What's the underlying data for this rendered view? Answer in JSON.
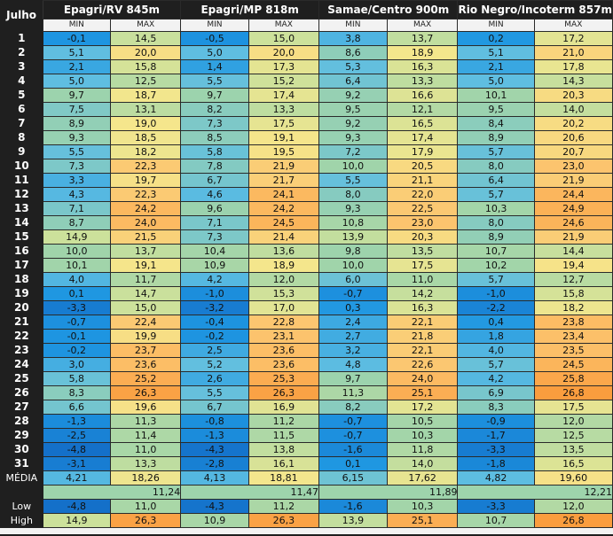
{
  "corner_label": "Julho",
  "stations": [
    {
      "name": "Epagri/RV 845m"
    },
    {
      "name": "Epagri/MP 818m"
    },
    {
      "name": "Samae/Centro 900m"
    },
    {
      "name": "Rio Negro/Incoterm 857m"
    }
  ],
  "sub_labels": {
    "min": "MIN",
    "max": "MAX"
  },
  "rows": [
    {
      "day": "1",
      "v": [
        "-0,1",
        "14,5",
        "-0,5",
        "15,0",
        "3,8",
        "13,7",
        "0,2",
        "17,2"
      ]
    },
    {
      "day": "2",
      "v": [
        "5,1",
        "20,0",
        "5,0",
        "20,0",
        "8,6",
        "18,9",
        "5,1",
        "21,0"
      ]
    },
    {
      "day": "3",
      "v": [
        "2,1",
        "15,8",
        "1,4",
        "17,3",
        "5,3",
        "16,3",
        "2,1",
        "17,8"
      ]
    },
    {
      "day": "4",
      "v": [
        "5,0",
        "12,5",
        "5,5",
        "15,2",
        "6,4",
        "13,3",
        "5,0",
        "14,3"
      ]
    },
    {
      "day": "5",
      "v": [
        "9,7",
        "18,7",
        "9,7",
        "17,4",
        "9,2",
        "16,6",
        "10,1",
        "20,3"
      ]
    },
    {
      "day": "6",
      "v": [
        "7,5",
        "13,1",
        "8,2",
        "13,3",
        "9,5",
        "12,1",
        "9,5",
        "14,0"
      ]
    },
    {
      "day": "7",
      "v": [
        "8,9",
        "19,0",
        "7,3",
        "17,5",
        "9,2",
        "16,5",
        "8,4",
        "20,2"
      ]
    },
    {
      "day": "8",
      "v": [
        "9,3",
        "18,5",
        "8,5",
        "19,1",
        "9,3",
        "17,4",
        "8,9",
        "20,6"
      ]
    },
    {
      "day": "9",
      "v": [
        "5,5",
        "18,2",
        "5,8",
        "19,5",
        "7,2",
        "17,9",
        "5,7",
        "20,7"
      ]
    },
    {
      "day": "10",
      "v": [
        "7,3",
        "22,3",
        "7,8",
        "21,9",
        "10,0",
        "20,5",
        "8,0",
        "23,0"
      ]
    },
    {
      "day": "11",
      "v": [
        "3,3",
        "19,7",
        "6,7",
        "21,7",
        "5,5",
        "21,1",
        "6,4",
        "21,9"
      ]
    },
    {
      "day": "12",
      "v": [
        "4,3",
        "22,3",
        "4,6",
        "24,1",
        "8,0",
        "22,0",
        "5,7",
        "24,4"
      ]
    },
    {
      "day": "13",
      "v": [
        "7,1",
        "24,2",
        "9,6",
        "24,2",
        "9,3",
        "22,5",
        "10,3",
        "24,9"
      ]
    },
    {
      "day": "14",
      "v": [
        "8,7",
        "24,0",
        "7,1",
        "24,5",
        "10,8",
        "23,0",
        "8,0",
        "24,6"
      ]
    },
    {
      "day": "15",
      "v": [
        "14,9",
        "21,5",
        "7,3",
        "21,4",
        "13,9",
        "20,3",
        "8,9",
        "21,9"
      ]
    },
    {
      "day": "16",
      "v": [
        "10,0",
        "13,7",
        "10,4",
        "13,6",
        "9,8",
        "13,5",
        "10,7",
        "14,4"
      ]
    },
    {
      "day": "17",
      "v": [
        "10,1",
        "19,1",
        "10,9",
        "18,9",
        "10,0",
        "17,5",
        "10,2",
        "19,4"
      ]
    },
    {
      "day": "18",
      "v": [
        "4,0",
        "11,7",
        "4,2",
        "12,0",
        "6,0",
        "11,0",
        "5,7",
        "12,7"
      ]
    },
    {
      "day": "19",
      "v": [
        "0,1",
        "14,7",
        "-1,0",
        "15,3",
        "-0,7",
        "14,2",
        "-1,0",
        "15,8"
      ]
    },
    {
      "day": "20",
      "v": [
        "-3,3",
        "15,0",
        "-3,2",
        "17,0",
        "0,3",
        "16,3",
        "-2,2",
        "18,2"
      ]
    },
    {
      "day": "21",
      "v": [
        "-0,7",
        "22,4",
        "-0,4",
        "22,8",
        "2,4",
        "22,1",
        "0,4",
        "23,8"
      ]
    },
    {
      "day": "22",
      "v": [
        "-0,1",
        "19,9",
        "-0,2",
        "23,1",
        "2,7",
        "21,8",
        "1,8",
        "23,4"
      ]
    },
    {
      "day": "23",
      "v": [
        "-0,2",
        "23,7",
        "2,5",
        "23,6",
        "3,2",
        "22,1",
        "4,0",
        "23,5"
      ]
    },
    {
      "day": "24",
      "v": [
        "3,0",
        "23,6",
        "5,2",
        "23,6",
        "4,8",
        "22,6",
        "5,7",
        "24,5"
      ]
    },
    {
      "day": "25",
      "v": [
        "5,8",
        "25,2",
        "2,6",
        "25,3",
        "9,7",
        "24,0",
        "4,2",
        "25,8"
      ]
    },
    {
      "day": "26",
      "v": [
        "8,3",
        "26,3",
        "5,5",
        "26,3",
        "11,3",
        "25,1",
        "6,9",
        "26,8"
      ]
    },
    {
      "day": "27",
      "v": [
        "6,6",
        "19,6",
        "6,7",
        "16,9",
        "8,2",
        "17,2",
        "8,3",
        "17,5"
      ]
    },
    {
      "day": "28",
      "v": [
        "-1,3",
        "11,3",
        "-0,8",
        "11,2",
        "-0,7",
        "10,5",
        "-0,9",
        "12,0"
      ]
    },
    {
      "day": "29",
      "v": [
        "-2,5",
        "11,4",
        "-1,3",
        "11,5",
        "-0,7",
        "10,3",
        "-1,7",
        "12,5"
      ]
    },
    {
      "day": "30",
      "v": [
        "-4,8",
        "11,0",
        "-4,3",
        "13,8",
        "-1,6",
        "11,8",
        "-3,3",
        "13,5"
      ]
    },
    {
      "day": "31",
      "v": [
        "-3,1",
        "13,3",
        "-2,8",
        "16,1",
        "0,1",
        "14,0",
        "-1,8",
        "16,5"
      ]
    }
  ],
  "media": {
    "label": "MÉDIA",
    "v": [
      "4,21",
      "18,26",
      "4,13",
      "18,81",
      "6,15",
      "17,62",
      "4,82",
      "19,60"
    ],
    "overall": [
      "11,24",
      "11,47",
      "11,89",
      "12,21"
    ]
  },
  "low": {
    "label": "Low",
    "v": [
      "-4,8",
      "11,0",
      "-4,3",
      "11,2",
      "-1,6",
      "10,3",
      "-3,3",
      "12,0"
    ]
  },
  "high": {
    "label": "High",
    "v": [
      "14,9",
      "26,3",
      "10,9",
      "26,3",
      "13,9",
      "25,1",
      "10,7",
      "26,8"
    ]
  }
}
